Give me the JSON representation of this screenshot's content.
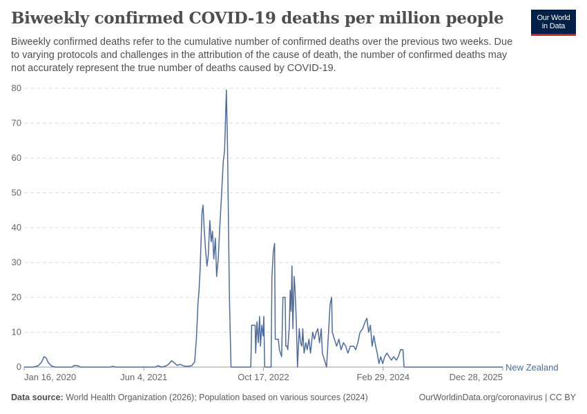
{
  "header": {
    "title": "Biweekly confirmed COVID-19 deaths per million people",
    "subtitle": "Biweekly confirmed deaths refer to the cumulative number of confirmed deaths over the previous two weeks. Due to varying protocols and challenges in the attribution of the cause of death, the number of confirmed deaths may not accurately represent the true number of deaths caused by COVID-19."
  },
  "logo": {
    "line1": "Our World",
    "line2": "in Data"
  },
  "footer": {
    "source_label": "Data source:",
    "source_text": "World Health Organization (2026); Population based on various sources (2024)",
    "link_text": "OurWorldinData.org/coronavirus | CC BY"
  },
  "colors": {
    "series": "#4c6a9c",
    "grid": "#dddddd",
    "axis": "#999999",
    "logo_bg": "#002147",
    "logo_accent": "#ce261e"
  },
  "chart_data": {
    "type": "line",
    "title": "Biweekly confirmed COVID-19 deaths per million people",
    "xlabel": "",
    "ylabel": "",
    "ylim": [
      0,
      80
    ],
    "yticks": [
      0,
      10,
      20,
      30,
      40,
      50,
      60,
      70,
      80
    ],
    "xlim": [
      "2020-01-16",
      "2025-12-28"
    ],
    "xticks": [
      "Jan 16, 2020",
      "Jun 4, 2021",
      "Oct 17, 2022",
      "Feb 29, 2024",
      "Dec 28, 2025"
    ],
    "grid": true,
    "series": [
      {
        "name": "New Zealand",
        "points": [
          [
            "2020-01-16",
            0
          ],
          [
            "2020-02-28",
            0
          ],
          [
            "2020-03-20",
            0.4
          ],
          [
            "2020-04-05",
            1.5
          ],
          [
            "2020-04-15",
            3.0
          ],
          [
            "2020-04-25",
            2.6
          ],
          [
            "2020-05-05",
            1.2
          ],
          [
            "2020-05-20",
            0.3
          ],
          [
            "2020-06-05",
            0
          ],
          [
            "2020-08-20",
            0
          ],
          [
            "2020-09-01",
            0.5
          ],
          [
            "2020-09-15",
            0.4
          ],
          [
            "2020-09-25",
            0
          ],
          [
            "2021-02-10",
            0
          ],
          [
            "2021-02-22",
            0.2
          ],
          [
            "2021-03-05",
            0
          ],
          [
            "2021-09-01",
            0
          ],
          [
            "2021-09-15",
            0.4
          ],
          [
            "2021-10-01",
            0
          ],
          [
            "2021-10-20",
            0.3
          ],
          [
            "2021-11-01",
            0.8
          ],
          [
            "2021-11-15",
            1.8
          ],
          [
            "2021-11-28",
            1.2
          ],
          [
            "2021-12-10",
            0.5
          ],
          [
            "2021-12-25",
            0.8
          ],
          [
            "2022-01-10",
            0.3
          ],
          [
            "2022-01-25",
            0.2
          ],
          [
            "2022-02-15",
            0.4
          ],
          [
            "2022-02-28",
            1.5
          ],
          [
            "2022-03-08",
            8.0
          ],
          [
            "2022-03-15",
            18.0
          ],
          [
            "2022-03-20",
            22.0
          ],
          [
            "2022-03-25",
            28.0
          ],
          [
            "2022-04-02",
            44.0
          ],
          [
            "2022-04-07",
            46.5
          ],
          [
            "2022-04-12",
            40.0
          ],
          [
            "2022-04-18",
            34.0
          ],
          [
            "2022-04-25",
            29.0
          ],
          [
            "2022-05-01",
            32.0
          ],
          [
            "2022-05-08",
            42.0
          ],
          [
            "2022-05-14",
            36.0
          ],
          [
            "2022-05-20",
            39.0
          ],
          [
            "2022-05-26",
            31.0
          ],
          [
            "2022-06-02",
            37.0
          ],
          [
            "2022-06-08",
            26.0
          ],
          [
            "2022-06-15",
            31.0
          ],
          [
            "2022-06-22",
            40.0
          ],
          [
            "2022-06-30",
            49.0
          ],
          [
            "2022-07-08",
            59.0
          ],
          [
            "2022-07-14",
            62.0
          ],
          [
            "2022-07-22",
            79.5
          ],
          [
            "2022-07-27",
            64.0
          ],
          [
            "2022-08-05",
            20.0
          ],
          [
            "2022-08-12",
            0
          ],
          [
            "2022-11-10",
            0
          ],
          [
            "2022-11-14",
            12.0
          ],
          [
            "2022-11-30",
            12.0
          ],
          [
            "2022-12-02",
            4.0
          ],
          [
            "2022-12-08",
            13.0
          ],
          [
            "2022-12-14",
            7.0
          ],
          [
            "2022-12-20",
            14.5
          ],
          [
            "2022-12-24",
            6.0
          ],
          [
            "2022-12-30",
            12.0
          ],
          [
            "2023-01-05",
            9.0
          ],
          [
            "2023-01-08",
            14.5
          ],
          [
            "2023-01-12",
            0
          ],
          [
            "2023-02-10",
            0
          ],
          [
            "2023-02-14",
            26.0
          ],
          [
            "2023-02-20",
            33.0
          ],
          [
            "2023-02-26",
            35.5
          ],
          [
            "2023-03-01",
            8.0
          ],
          [
            "2023-03-15",
            8.0
          ],
          [
            "2023-03-20",
            5.0
          ],
          [
            "2023-03-30",
            3.0
          ],
          [
            "2023-04-05",
            20.0
          ],
          [
            "2023-04-15",
            20.0
          ],
          [
            "2023-04-18",
            6.0
          ],
          [
            "2023-04-24",
            6.0
          ],
          [
            "2023-04-27",
            5.0
          ],
          [
            "2023-05-04",
            12.0
          ],
          [
            "2023-05-08",
            22.0
          ],
          [
            "2023-05-12",
            16.0
          ],
          [
            "2023-05-16",
            29.0
          ],
          [
            "2023-05-20",
            11.0
          ],
          [
            "2023-05-26",
            26.0
          ],
          [
            "2023-05-30",
            22.0
          ],
          [
            "2023-06-04",
            14.0
          ],
          [
            "2023-06-10",
            0
          ],
          [
            "2023-06-18",
            11.0
          ],
          [
            "2023-06-24",
            7.0
          ],
          [
            "2023-06-30",
            6.0
          ],
          [
            "2023-07-04",
            11.0
          ],
          [
            "2023-07-10",
            4.0
          ],
          [
            "2023-07-18",
            7.0
          ],
          [
            "2023-07-24",
            5.0
          ],
          [
            "2023-08-01",
            8.0
          ],
          [
            "2023-08-08",
            4.0
          ],
          [
            "2023-08-18",
            10.0
          ],
          [
            "2023-08-26",
            8.0
          ],
          [
            "2023-09-03",
            10.0
          ],
          [
            "2023-09-10",
            11.0
          ],
          [
            "2023-09-18",
            7.0
          ],
          [
            "2023-09-26",
            11.0
          ],
          [
            "2023-10-01",
            4.0
          ],
          [
            "2023-10-20",
            0
          ],
          [
            "2023-11-05",
            18.0
          ],
          [
            "2023-11-12",
            20.0
          ],
          [
            "2023-11-15",
            10.0
          ],
          [
            "2023-11-25",
            8.0
          ],
          [
            "2023-12-05",
            6.0
          ],
          [
            "2023-12-15",
            8.0
          ],
          [
            "2023-12-25",
            5.0
          ],
          [
            "2024-01-05",
            7.0
          ],
          [
            "2024-01-15",
            6.0
          ],
          [
            "2024-01-25",
            4.0
          ],
          [
            "2024-02-05",
            6.0
          ],
          [
            "2024-02-20",
            6.0
          ],
          [
            "2024-02-29",
            5.0
          ],
          [
            "2024-03-10",
            7.0
          ],
          [
            "2024-03-20",
            10.0
          ],
          [
            "2024-04-01",
            11.0
          ],
          [
            "2024-04-12",
            13.0
          ],
          [
            "2024-04-20",
            14.0
          ],
          [
            "2024-04-28",
            10.0
          ],
          [
            "2024-05-06",
            12.0
          ],
          [
            "2024-05-14",
            6.0
          ],
          [
            "2024-05-22",
            9.0
          ],
          [
            "2024-05-30",
            6.0
          ],
          [
            "2024-06-06",
            4.0
          ],
          [
            "2024-06-14",
            1.0
          ],
          [
            "2024-06-22",
            3.0
          ],
          [
            "2024-07-01",
            1.0
          ],
          [
            "2024-07-10",
            3.0
          ],
          [
            "2024-07-20",
            4.0
          ],
          [
            "2024-07-30",
            3.0
          ],
          [
            "2024-08-10",
            2.0
          ],
          [
            "2024-08-20",
            3.0
          ],
          [
            "2024-09-01",
            2.0
          ],
          [
            "2024-09-10",
            3.0
          ],
          [
            "2024-09-20",
            5.0
          ],
          [
            "2024-10-01",
            5.0
          ],
          [
            "2024-10-06",
            0
          ],
          [
            "2025-12-28",
            0
          ]
        ]
      }
    ]
  }
}
